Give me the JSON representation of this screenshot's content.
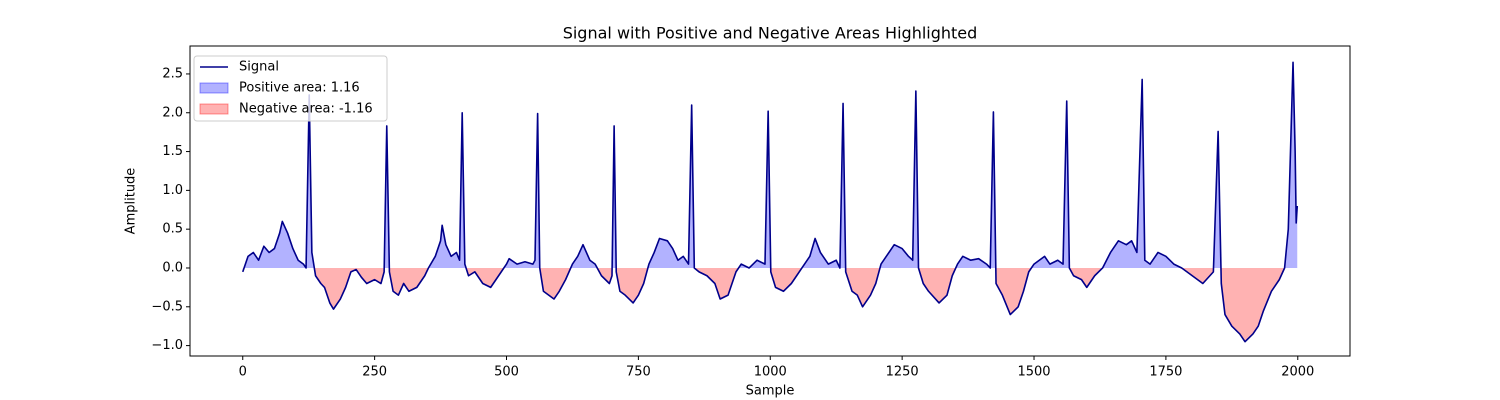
{
  "chart_data": {
    "type": "line",
    "title": "Signal with Positive and Negative Areas Highlighted",
    "xlabel": "Sample",
    "ylabel": "Amplitude",
    "xlim": [
      -100,
      2099
    ],
    "ylim": [
      -1.134,
      2.86
    ],
    "xticks": [
      0,
      250,
      500,
      750,
      1000,
      1250,
      1500,
      1750,
      2000
    ],
    "yticks": [
      {
        "value": -1.0,
        "label": "−1.0"
      },
      {
        "value": -0.5,
        "label": "−0.5"
      },
      {
        "value": 0.0,
        "label": "0.0"
      },
      0.5,
      {
        "value": 1.0,
        "label": "1.0"
      },
      1.5,
      {
        "value": 2.0,
        "label": "2.0"
      },
      2.5
    ],
    "legend": "upper left",
    "x": [
      0,
      10,
      20,
      30,
      40,
      50,
      60,
      70,
      75,
      85,
      95,
      105,
      115,
      120,
      126,
      131,
      138,
      148,
      155,
      165,
      172,
      185,
      195,
      205,
      215,
      225,
      235,
      250,
      262,
      268,
      273,
      278,
      285,
      295,
      305,
      315,
      330,
      345,
      352,
      365,
      375,
      378,
      385,
      395,
      405,
      411,
      416,
      421,
      428,
      440,
      455,
      470,
      480,
      490,
      500,
      505,
      520,
      535,
      550,
      554,
      559,
      563,
      570,
      580,
      590,
      600,
      612,
      625,
      635,
      645,
      658,
      668,
      680,
      695,
      700,
      704,
      708,
      715,
      725,
      740,
      750,
      760,
      770,
      780,
      790,
      805,
      815,
      825,
      835,
      845,
      851,
      856,
      865,
      880,
      895,
      905,
      920,
      935,
      945,
      960,
      975,
      990,
      996,
      1001,
      1010,
      1025,
      1040,
      1050,
      1060,
      1075,
      1085,
      1095,
      1110,
      1125,
      1132,
      1138,
      1143,
      1155,
      1165,
      1175,
      1190,
      1200,
      1210,
      1220,
      1235,
      1250,
      1262,
      1270,
      1276,
      1281,
      1290,
      1300,
      1320,
      1335,
      1345,
      1355,
      1365,
      1380,
      1395,
      1410,
      1417,
      1423,
      1428,
      1440,
      1455,
      1470,
      1480,
      1490,
      1500,
      1510,
      1520,
      1530,
      1545,
      1555,
      1562,
      1567,
      1575,
      1590,
      1600,
      1615,
      1630,
      1645,
      1660,
      1675,
      1685,
      1695,
      1705,
      1710,
      1720,
      1735,
      1750,
      1765,
      1780,
      1800,
      1820,
      1840,
      1849,
      1855,
      1862,
      1875,
      1890,
      1900,
      1915,
      1925,
      1935,
      1950,
      1965,
      1975,
      1982,
      1991,
      1995,
      1997,
      1999
    ],
    "series": [
      {
        "name": "Signal",
        "color": "#00008b",
        "values": [
          -0.05,
          0.15,
          0.2,
          0.1,
          0.28,
          0.2,
          0.25,
          0.45,
          0.6,
          0.45,
          0.25,
          0.1,
          0.05,
          0.0,
          2.23,
          0.2,
          -0.1,
          -0.2,
          -0.25,
          -0.45,
          -0.53,
          -0.4,
          -0.25,
          -0.05,
          -0.02,
          -0.12,
          -0.2,
          -0.15,
          -0.2,
          -0.05,
          1.83,
          -0.05,
          -0.3,
          -0.35,
          -0.2,
          -0.3,
          -0.25,
          -0.1,
          0.0,
          0.15,
          0.35,
          0.55,
          0.3,
          0.15,
          0.2,
          0.1,
          2.0,
          0.05,
          -0.1,
          -0.05,
          -0.2,
          -0.25,
          -0.15,
          -0.05,
          0.05,
          0.12,
          0.05,
          0.08,
          0.05,
          0.1,
          1.99,
          0.0,
          -0.3,
          -0.35,
          -0.4,
          -0.3,
          -0.15,
          0.05,
          0.15,
          0.3,
          0.1,
          0.05,
          -0.1,
          -0.2,
          -0.1,
          1.83,
          -0.05,
          -0.3,
          -0.35,
          -0.45,
          -0.35,
          -0.2,
          0.05,
          0.2,
          0.38,
          0.35,
          0.25,
          0.1,
          0.15,
          0.05,
          2.1,
          0.0,
          -0.05,
          -0.1,
          -0.2,
          -0.4,
          -0.35,
          -0.05,
          0.05,
          0.0,
          0.1,
          0.05,
          2.02,
          -0.05,
          -0.25,
          -0.3,
          -0.2,
          -0.1,
          0.0,
          0.15,
          0.38,
          0.2,
          0.05,
          0.1,
          0.0,
          2.12,
          -0.05,
          -0.3,
          -0.35,
          -0.5,
          -0.35,
          -0.2,
          0.05,
          0.15,
          0.3,
          0.25,
          0.15,
          0.1,
          2.28,
          0.0,
          -0.2,
          -0.3,
          -0.45,
          -0.35,
          -0.1,
          0.05,
          0.15,
          0.1,
          0.12,
          0.05,
          0.0,
          2.01,
          -0.2,
          -0.35,
          -0.6,
          -0.5,
          -0.3,
          -0.05,
          0.05,
          0.1,
          0.15,
          0.05,
          0.1,
          0.05,
          2.15,
          0.0,
          -0.1,
          -0.15,
          -0.25,
          -0.1,
          0.0,
          0.2,
          0.35,
          0.3,
          0.35,
          0.2,
          2.43,
          0.1,
          0.05,
          0.2,
          0.15,
          0.05,
          0.0,
          -0.1,
          -0.2,
          -0.05,
          1.76,
          -0.2,
          -0.6,
          -0.75,
          -0.85,
          -0.95,
          -0.85,
          -0.75,
          -0.55,
          -0.3,
          -0.15,
          0.0,
          0.5,
          2.65,
          1.5,
          0.58,
          0.8
        ]
      }
    ],
    "fills": [
      {
        "name": "Positive area: 1.16",
        "color": "#0000ff",
        "opacity": 0.3,
        "side": "positive"
      },
      {
        "name": "Negative area: -1.16",
        "color": "#ff0000",
        "opacity": 0.3,
        "side": "negative"
      }
    ]
  }
}
